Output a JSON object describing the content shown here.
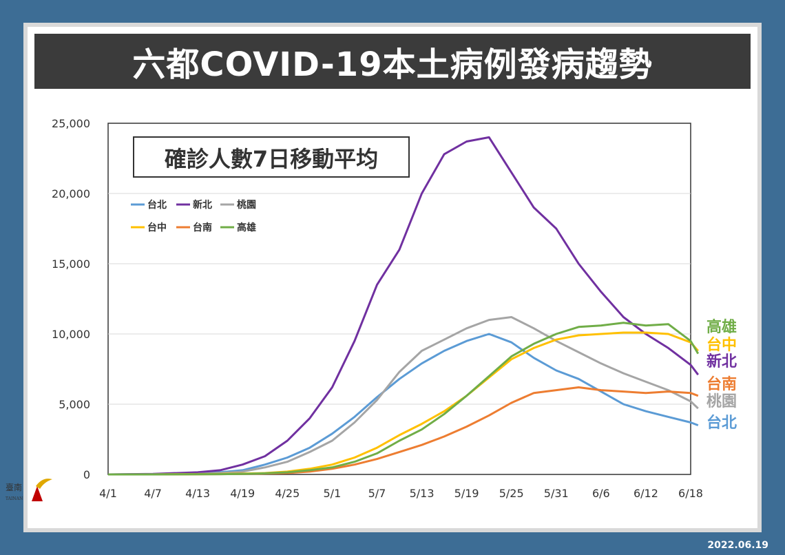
{
  "header": {
    "title": "六都COVID-19本土病例發病趨勢"
  },
  "footer": {
    "date": "2022.06.19"
  },
  "logo": {
    "text": "臺南",
    "subtext": "TAINAN"
  },
  "chart_data": {
    "type": "line",
    "title": "確診人數7日移動平均",
    "xlabel": "",
    "ylabel": "",
    "ylim": [
      0,
      25000
    ],
    "yticks": [
      0,
      5000,
      10000,
      15000,
      20000,
      25000
    ],
    "ytick_labels": [
      "0",
      "5,000",
      "10,000",
      "15,000",
      "20,000",
      "25,000"
    ],
    "xtick_labels": [
      "4/1",
      "4/7",
      "4/13",
      "4/19",
      "4/25",
      "5/1",
      "5/7",
      "5/13",
      "5/19",
      "5/25",
      "5/31",
      "6/6",
      "6/12",
      "6/18"
    ],
    "grid": "horizontal",
    "legend_position": "top-left",
    "x_days": [
      0,
      6,
      12,
      15,
      18,
      21,
      24,
      27,
      30,
      33,
      36,
      39,
      42,
      45,
      48,
      51,
      54,
      57,
      60,
      63,
      66,
      69,
      72,
      75,
      78,
      79
    ],
    "series": [
      {
        "name": "台北",
        "color": "#5b9bd5",
        "values": [
          0,
          20,
          80,
          150,
          300,
          700,
          1200,
          1900,
          2900,
          4100,
          5500,
          6800,
          7900,
          8800,
          9500,
          10000,
          9400,
          8300,
          7400,
          6800,
          5900,
          5000,
          4500,
          4100,
          3700,
          3500
        ]
      },
      {
        "name": "新北",
        "color": "#7030a0",
        "values": [
          0,
          40,
          150,
          300,
          700,
          1300,
          2400,
          4000,
          6200,
          9500,
          13500,
          16000,
          20000,
          22800,
          23700,
          24000,
          21500,
          19000,
          17500,
          15000,
          13000,
          11200,
          10000,
          9000,
          7800,
          7100
        ]
      },
      {
        "name": "桃園",
        "color": "#a5a5a5",
        "values": [
          0,
          10,
          40,
          100,
          200,
          500,
          900,
          1600,
          2400,
          3700,
          5300,
          7300,
          8800,
          9600,
          10400,
          11000,
          11200,
          10400,
          9500,
          8700,
          7900,
          7200,
          6600,
          6000,
          5200,
          4700
        ]
      },
      {
        "name": "台中",
        "color": "#ffc000",
        "values": [
          0,
          0,
          20,
          40,
          60,
          100,
          200,
          400,
          700,
          1200,
          1900,
          2800,
          3600,
          4500,
          5600,
          6900,
          8200,
          9000,
          9600,
          9900,
          10000,
          10100,
          10100,
          10000,
          9400,
          8800
        ]
      },
      {
        "name": "台南",
        "color": "#ed7d31",
        "values": [
          0,
          0,
          10,
          20,
          40,
          60,
          100,
          200,
          400,
          700,
          1100,
          1600,
          2100,
          2700,
          3400,
          4200,
          5100,
          5800,
          6000,
          6200,
          6000,
          5900,
          5800,
          5900,
          5800,
          5600
        ]
      },
      {
        "name": "高雄",
        "color": "#70ad47",
        "values": [
          0,
          0,
          10,
          20,
          40,
          80,
          150,
          300,
          500,
          900,
          1500,
          2400,
          3200,
          4300,
          5600,
          7000,
          8400,
          9300,
          10000,
          10500,
          10600,
          10800,
          10600,
          10700,
          9500,
          8600
        ]
      }
    ],
    "end_labels": [
      {
        "name": "高雄",
        "color": "#70ad47"
      },
      {
        "name": "台中",
        "color": "#ffc000"
      },
      {
        "name": "新北",
        "color": "#7030a0"
      },
      {
        "name": "台南",
        "color": "#ed7d31"
      },
      {
        "name": "桃園",
        "color": "#a5a5a5"
      },
      {
        "name": "台北",
        "color": "#5b9bd5"
      }
    ]
  }
}
